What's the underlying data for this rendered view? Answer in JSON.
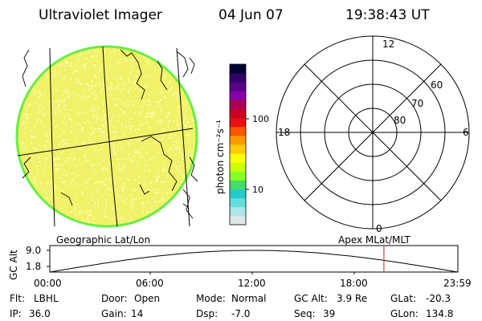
{
  "header": {
    "instrument": "Ultraviolet Imager",
    "date": "04 Jun 07",
    "time": "19:38:43 UT"
  },
  "globe": {
    "caption": "Geographic Lat/Lon",
    "fill_color": "#f2f26a",
    "speckle_color": "#ffffc8",
    "rim_color": "#66ee44"
  },
  "colorbar": {
    "unit_label": "photon cm⁻²s⁻¹",
    "tick_100": "100",
    "tick_10": "10",
    "colors": [
      "#000033",
      "#330066",
      "#5a0088",
      "#8a00aa",
      "#aa0055",
      "#cc0022",
      "#e81010",
      "#ff5500",
      "#ff9900",
      "#ffcc00",
      "#ffff00",
      "#ccff00",
      "#88ff22",
      "#44dd66",
      "#22cccc",
      "#66dddd",
      "#aae8e8",
      "#dde8e8"
    ]
  },
  "polar": {
    "caption": "Apex MLat/MLT",
    "mlt_top": "12",
    "mlt_bottom": "0",
    "mlt_left": "18",
    "mlt_right": "6",
    "lat_60": "60",
    "lat_70": "70",
    "lat_80": "80"
  },
  "altitude_plot": {
    "ylabel": "GC Alt",
    "y_top": "9.0",
    "y_bottom": "1.8",
    "x_ticks": [
      "00:00",
      "06:00",
      "12:00",
      "18:00",
      "23:59"
    ],
    "marker_time": "19:38",
    "marker_color": "#cc4444"
  },
  "status": {
    "filter_label": "Flt:",
    "filter_value": "LBHL",
    "door_label": "Door:",
    "door_value": "Open",
    "mode_label": "Mode:",
    "mode_value": "Normal",
    "gcalt_label": "GC Alt:",
    "gcalt_value": "3.9 Re",
    "glat_label": "GLat:",
    "glat_value": "-20.3",
    "ip_label": "IP:",
    "ip_value": "36.0",
    "gain_label": "Gain:",
    "gain_value": "14",
    "dsp_label": "Dsp:",
    "dsp_value": "-7.0",
    "seq_label": "Seq:",
    "seq_value": "39",
    "glon_label": "GLon:",
    "glon_value": "134.8"
  }
}
